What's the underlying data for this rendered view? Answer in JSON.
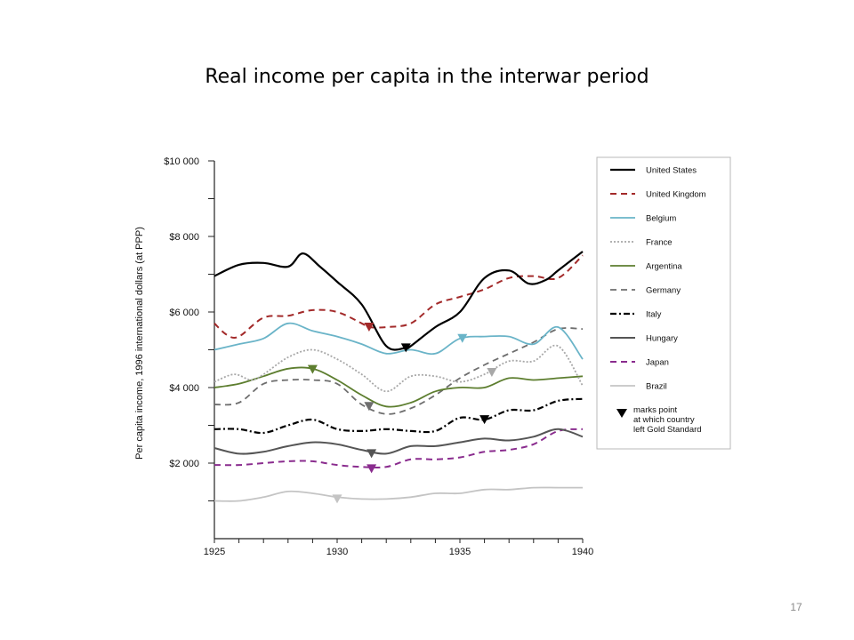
{
  "slide": {
    "title": "Real income per capita in the interwar period",
    "page_number": "17"
  },
  "chart_data": {
    "type": "line",
    "title": "",
    "xlabel": "",
    "ylabel": "Per capita income, 1996 international dollars (at PPP)",
    "xlim": [
      1925,
      1940
    ],
    "ylim": [
      0,
      10000
    ],
    "x_ticks": [
      1925,
      1930,
      1935,
      1940
    ],
    "x_tick_labels": [
      "1925",
      "1930",
      "1935",
      "1940"
    ],
    "y_ticks": [
      2000,
      4000,
      6000,
      8000,
      10000
    ],
    "y_tick_labels": [
      "$2 000",
      "$4 000",
      "$6 000",
      "$8 000",
      "$10 000"
    ],
    "grid": false,
    "legend_position": "right",
    "legend_note": "marks point at which country left Gold Standard",
    "legend_note_lines": [
      "marks point",
      "at which country",
      "left Gold Standard"
    ],
    "series": [
      {
        "name": "United States",
        "color": "#000000",
        "dash": "solid",
        "width": 2.2,
        "points": [
          [
            1925,
            6950
          ],
          [
            1926,
            7250
          ],
          [
            1927,
            7300
          ],
          [
            1928,
            7200
          ],
          [
            1928.6,
            7550
          ],
          [
            1929.3,
            7200
          ],
          [
            1930,
            6800
          ],
          [
            1931,
            6200
          ],
          [
            1932,
            5100
          ],
          [
            1932.8,
            5050
          ],
          [
            1933,
            5100
          ],
          [
            1934,
            5600
          ],
          [
            1935,
            6000
          ],
          [
            1936,
            6900
          ],
          [
            1937,
            7100
          ],
          [
            1937.8,
            6750
          ],
          [
            1938.5,
            6850
          ],
          [
            1939,
            7100
          ],
          [
            1940,
            7600
          ]
        ],
        "gold_exit": [
          1932.8,
          5050
        ]
      },
      {
        "name": "United Kingdom",
        "color": "#a32a2a",
        "dash": "dashed",
        "width": 2,
        "points": [
          [
            1925,
            5700
          ],
          [
            1925.5,
            5400
          ],
          [
            1926,
            5350
          ],
          [
            1927,
            5850
          ],
          [
            1928,
            5900
          ],
          [
            1929,
            6050
          ],
          [
            1930,
            6000
          ],
          [
            1931,
            5700
          ],
          [
            1931.3,
            5600
          ],
          [
            1932,
            5600
          ],
          [
            1933,
            5700
          ],
          [
            1934,
            6200
          ],
          [
            1935,
            6400
          ],
          [
            1936,
            6600
          ],
          [
            1937,
            6900
          ],
          [
            1938,
            6950
          ],
          [
            1939,
            6900
          ],
          [
            1940,
            7500
          ]
        ],
        "gold_exit": [
          1931.3,
          5600
        ]
      },
      {
        "name": "Belgium",
        "color": "#6ab4c8",
        "dash": "solid",
        "width": 1.8,
        "points": [
          [
            1925,
            5000
          ],
          [
            1926,
            5150
          ],
          [
            1927,
            5300
          ],
          [
            1928,
            5700
          ],
          [
            1929,
            5500
          ],
          [
            1930,
            5350
          ],
          [
            1931,
            5150
          ],
          [
            1932,
            4900
          ],
          [
            1933,
            5000
          ],
          [
            1934,
            4900
          ],
          [
            1935,
            5300
          ],
          [
            1936,
            5350
          ],
          [
            1937,
            5350
          ],
          [
            1938,
            5150
          ],
          [
            1939,
            5600
          ],
          [
            1940,
            4750
          ]
        ],
        "gold_exit": [
          1935.1,
          5300
        ]
      },
      {
        "name": "France",
        "color": "#a8a8a8",
        "dash": "dotted",
        "width": 1.8,
        "points": [
          [
            1925,
            4150
          ],
          [
            1925.8,
            4350
          ],
          [
            1926.5,
            4200
          ],
          [
            1927,
            4350
          ],
          [
            1928,
            4800
          ],
          [
            1929,
            5000
          ],
          [
            1930,
            4750
          ],
          [
            1931,
            4350
          ],
          [
            1932,
            3900
          ],
          [
            1933,
            4300
          ],
          [
            1934,
            4300
          ],
          [
            1935,
            4150
          ],
          [
            1936,
            4350
          ],
          [
            1937,
            4700
          ],
          [
            1938,
            4700
          ],
          [
            1939,
            5100
          ],
          [
            1940,
            4050
          ]
        ],
        "gold_exit": [
          1936.3,
          4400
        ]
      },
      {
        "name": "Argentina",
        "color": "#5d7e2f",
        "dash": "solid",
        "width": 1.8,
        "points": [
          [
            1925,
            4000
          ],
          [
            1926,
            4100
          ],
          [
            1927,
            4300
          ],
          [
            1928,
            4500
          ],
          [
            1929,
            4500
          ],
          [
            1930,
            4200
          ],
          [
            1931,
            3800
          ],
          [
            1932,
            3500
          ],
          [
            1933,
            3600
          ],
          [
            1934,
            3900
          ],
          [
            1935,
            4000
          ],
          [
            1936,
            4000
          ],
          [
            1937,
            4250
          ],
          [
            1938,
            4200
          ],
          [
            1939,
            4250
          ],
          [
            1940,
            4300
          ]
        ],
        "gold_exit": [
          1929,
          4480
        ]
      },
      {
        "name": "Germany",
        "color": "#6e6e6e",
        "dash": "dashed",
        "width": 1.8,
        "points": [
          [
            1925,
            3550
          ],
          [
            1926,
            3600
          ],
          [
            1927,
            4100
          ],
          [
            1928,
            4200
          ],
          [
            1929,
            4200
          ],
          [
            1930,
            4100
          ],
          [
            1931,
            3550
          ],
          [
            1932,
            3300
          ],
          [
            1933,
            3450
          ],
          [
            1934,
            3800
          ],
          [
            1935,
            4250
          ],
          [
            1936,
            4600
          ],
          [
            1937,
            4900
          ],
          [
            1938,
            5200
          ],
          [
            1939,
            5550
          ],
          [
            1940,
            5550
          ]
        ],
        "gold_exit": [
          1931.3,
          3500
        ]
      },
      {
        "name": "Italy",
        "color": "#000000",
        "dash": "dashdot",
        "width": 2.2,
        "points": [
          [
            1925,
            2900
          ],
          [
            1926,
            2900
          ],
          [
            1927,
            2800
          ],
          [
            1928,
            3000
          ],
          [
            1929,
            3150
          ],
          [
            1930,
            2900
          ],
          [
            1931,
            2850
          ],
          [
            1932,
            2900
          ],
          [
            1933,
            2850
          ],
          [
            1934,
            2850
          ],
          [
            1935,
            3200
          ],
          [
            1936,
            3150
          ],
          [
            1937,
            3400
          ],
          [
            1938,
            3400
          ],
          [
            1939,
            3650
          ],
          [
            1940,
            3700
          ]
        ],
        "gold_exit": [
          1936,
          3150
        ]
      },
      {
        "name": "Hungary",
        "color": "#555555",
        "dash": "solid",
        "width": 2,
        "points": [
          [
            1925,
            2400
          ],
          [
            1926,
            2250
          ],
          [
            1927,
            2300
          ],
          [
            1928,
            2450
          ],
          [
            1929,
            2550
          ],
          [
            1930,
            2500
          ],
          [
            1931,
            2350
          ],
          [
            1932,
            2250
          ],
          [
            1933,
            2450
          ],
          [
            1934,
            2450
          ],
          [
            1935,
            2550
          ],
          [
            1936,
            2650
          ],
          [
            1937,
            2600
          ],
          [
            1938,
            2700
          ],
          [
            1939,
            2900
          ],
          [
            1940,
            2700
          ]
        ],
        "gold_exit": [
          1931.4,
          2250
        ]
      },
      {
        "name": "Japan",
        "color": "#8a2c8e",
        "dash": "dashed",
        "width": 2,
        "points": [
          [
            1925,
            1950
          ],
          [
            1926,
            1950
          ],
          [
            1927,
            2000
          ],
          [
            1928,
            2050
          ],
          [
            1929,
            2050
          ],
          [
            1930,
            1950
          ],
          [
            1931,
            1900
          ],
          [
            1932,
            1900
          ],
          [
            1933,
            2100
          ],
          [
            1934,
            2100
          ],
          [
            1935,
            2150
          ],
          [
            1936,
            2300
          ],
          [
            1937,
            2350
          ],
          [
            1938,
            2500
          ],
          [
            1939,
            2850
          ],
          [
            1940,
            2900
          ]
        ],
        "gold_exit": [
          1931.4,
          1850
        ]
      },
      {
        "name": "Brazil",
        "color": "#c4c4c4",
        "dash": "solid",
        "width": 1.8,
        "points": [
          [
            1925,
            1000
          ],
          [
            1926,
            1000
          ],
          [
            1927,
            1100
          ],
          [
            1928,
            1250
          ],
          [
            1929,
            1200
          ],
          [
            1930,
            1100
          ],
          [
            1931,
            1050
          ],
          [
            1932,
            1050
          ],
          [
            1933,
            1100
          ],
          [
            1934,
            1200
          ],
          [
            1935,
            1200
          ],
          [
            1936,
            1300
          ],
          [
            1937,
            1300
          ],
          [
            1938,
            1350
          ],
          [
            1939,
            1350
          ],
          [
            1940,
            1350
          ]
        ],
        "gold_exit": [
          1930,
          1050
        ]
      }
    ]
  }
}
